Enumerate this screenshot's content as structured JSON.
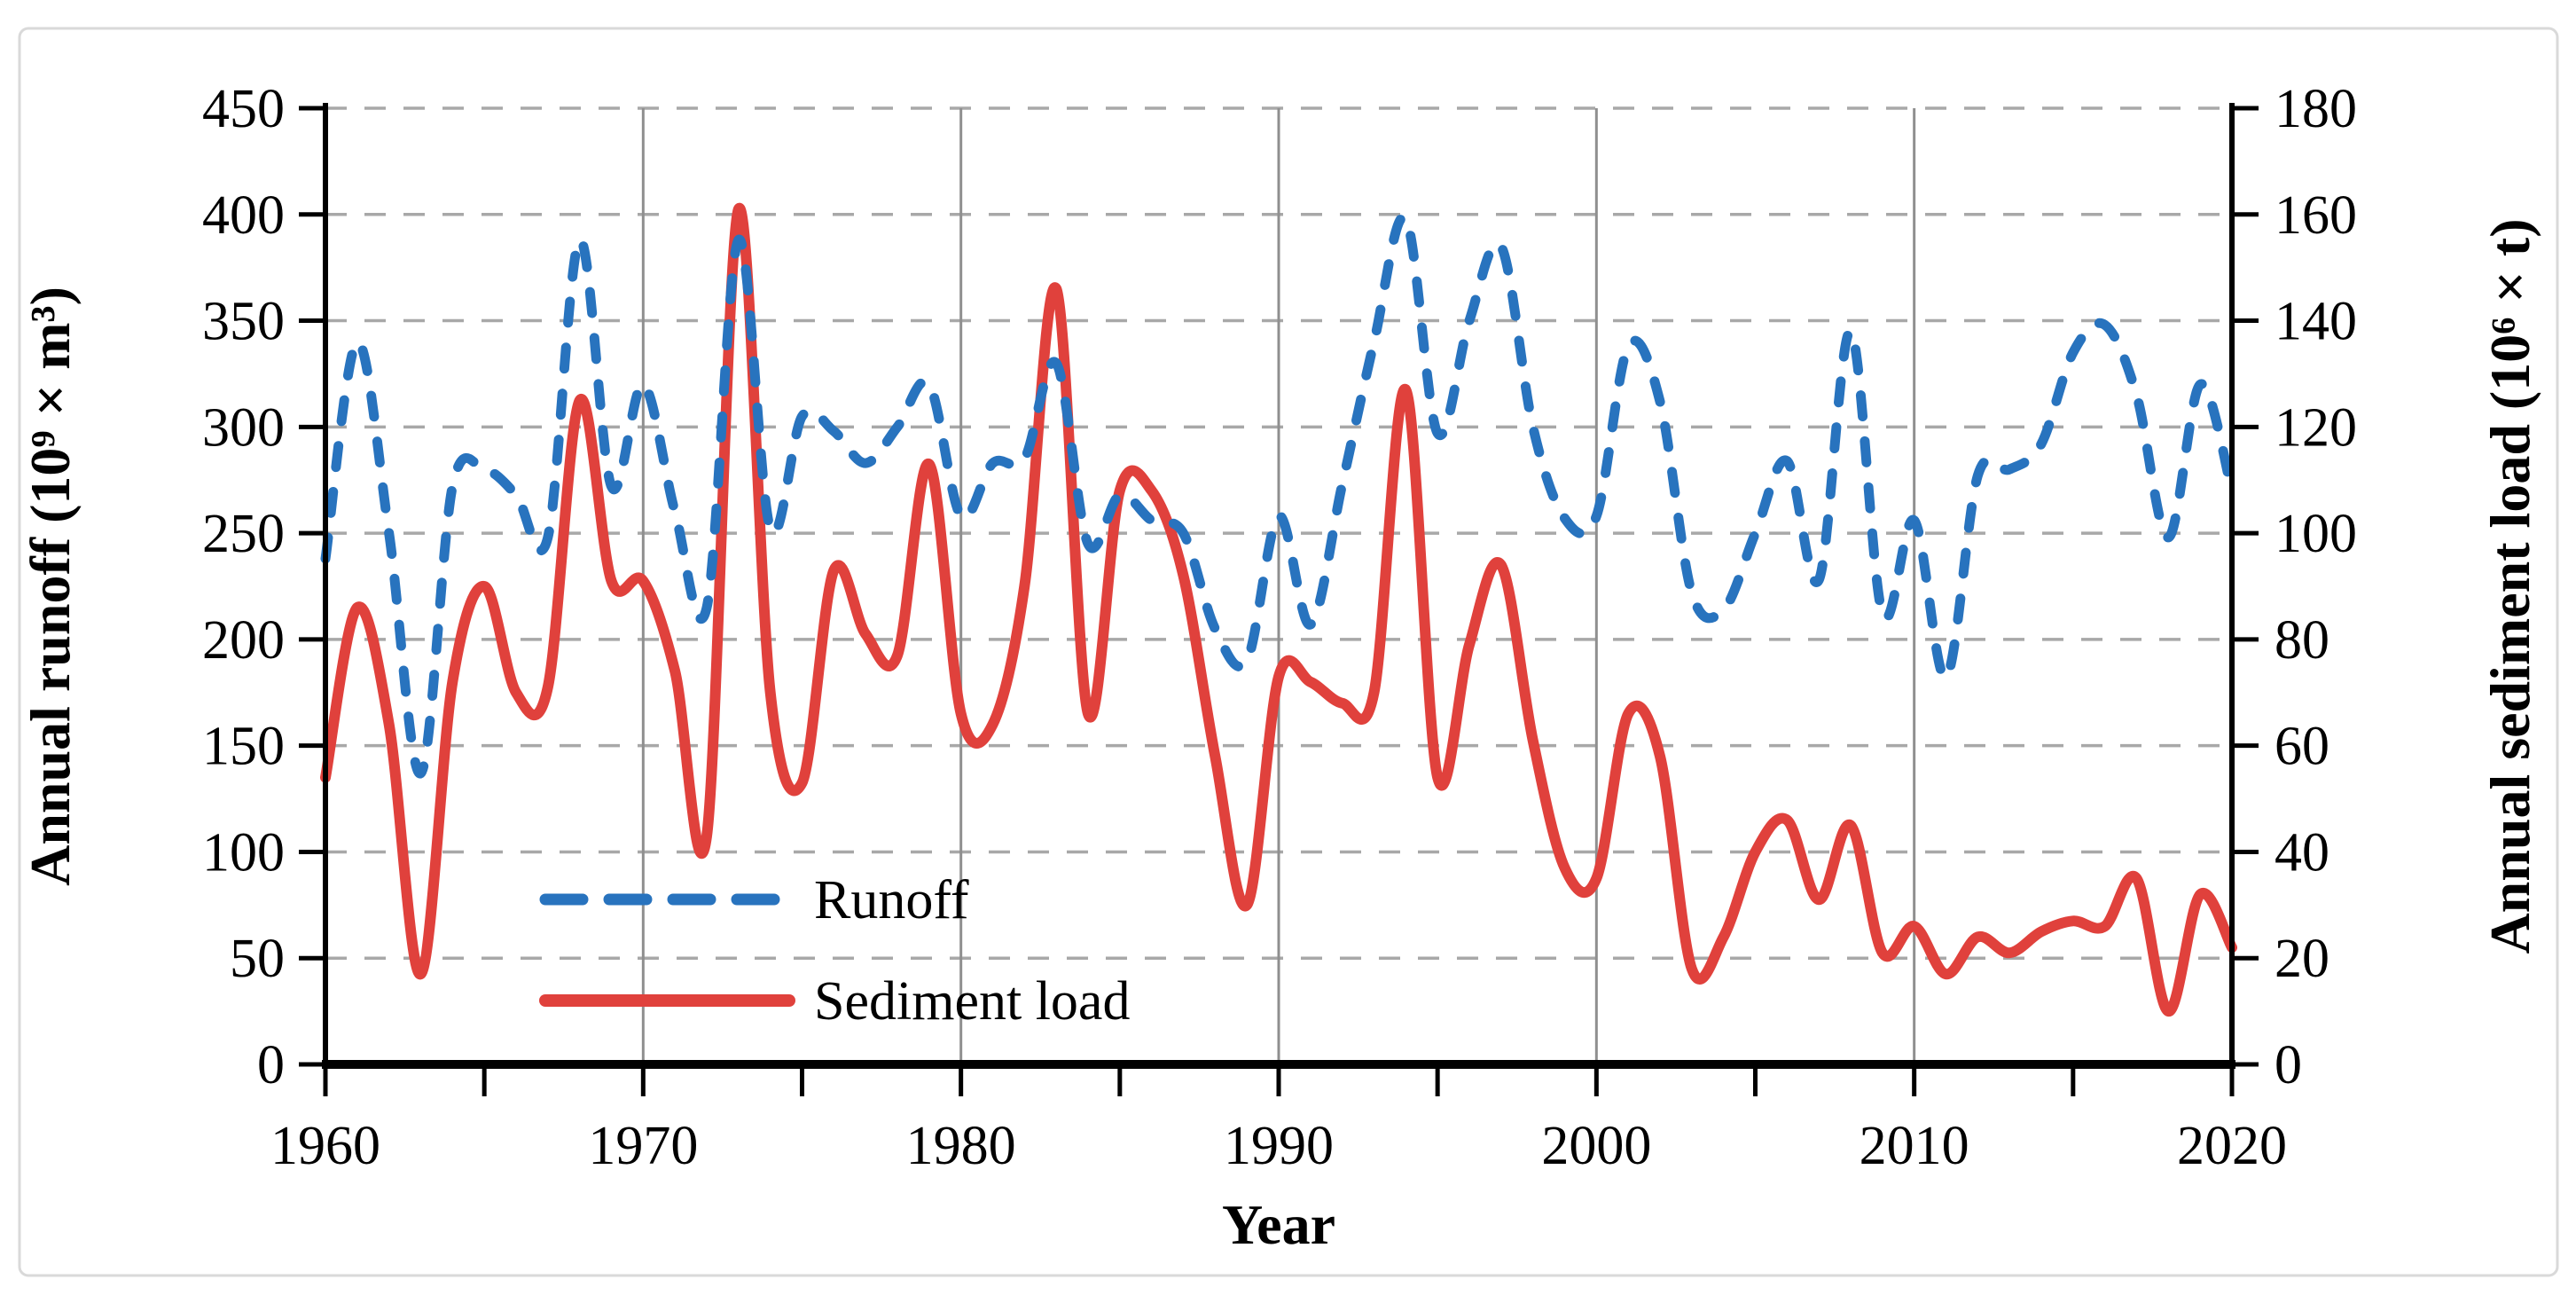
{
  "chart_data": {
    "type": "line",
    "title": "",
    "xlabel": "Year",
    "x_axis": {
      "range": [
        1960,
        2020
      ],
      "major_ticks": [
        1960,
        1970,
        1980,
        1990,
        2000,
        2010,
        2020
      ],
      "minor_tick_step_years": 5,
      "decade_gridlines": [
        1970,
        1980,
        1990,
        2000,
        2010
      ]
    },
    "y_left": {
      "title": "Annual runoff (10⁹ × m³)",
      "range": [
        0,
        450
      ],
      "tick_step": 50,
      "ticks": [
        0,
        50,
        100,
        150,
        200,
        250,
        300,
        350,
        400,
        450
      ]
    },
    "y_right": {
      "title": "Annual sediment load (10⁶ × t)",
      "range": [
        0,
        180
      ],
      "tick_step": 20,
      "ticks": [
        0,
        20,
        40,
        60,
        80,
        100,
        120,
        140,
        160,
        180
      ]
    },
    "x": [
      1960,
      1961,
      1962,
      1963,
      1964,
      1965,
      1966,
      1967,
      1968,
      1969,
      1970,
      1971,
      1972,
      1973,
      1974,
      1975,
      1976,
      1977,
      1978,
      1979,
      1980,
      1981,
      1982,
      1983,
      1984,
      1985,
      1986,
      1987,
      1988,
      1989,
      1990,
      1991,
      1992,
      1993,
      1994,
      1995,
      1996,
      1997,
      1998,
      1999,
      2000,
      2001,
      2002,
      2003,
      2004,
      2005,
      2006,
      2007,
      2008,
      2009,
      2010,
      2011,
      2012,
      2013,
      2014,
      2015,
      2016,
      2017,
      2018,
      2019,
      2020
    ],
    "series": [
      {
        "name": "Runoff",
        "axis": "left",
        "units": "10⁹ × m³",
        "color": "#2873BE",
        "style": "dashed",
        "values": [
          238,
          340,
          250,
          137,
          272,
          280,
          268,
          248,
          388,
          272,
          320,
          260,
          215,
          388,
          252,
          305,
          298,
          283,
          300,
          320,
          258,
          283,
          285,
          330,
          245,
          268,
          256,
          250,
          205,
          190,
          258,
          207,
          273,
          340,
          398,
          297,
          350,
          385,
          300,
          257,
          258,
          338,
          312,
          222,
          214,
          250,
          284,
          228,
          345,
          212,
          256,
          182,
          277,
          280,
          292,
          335,
          348,
          315,
          248,
          320,
          270
        ]
      },
      {
        "name": "Sediment load",
        "axis": "right",
        "units": "10⁶ × t",
        "color": "#E0413C",
        "style": "solid",
        "values": [
          54,
          86,
          64,
          17,
          72,
          90,
          70,
          71,
          125,
          91,
          91,
          74,
          43,
          161,
          70,
          53,
          93,
          81,
          77,
          113,
          66,
          64,
          90,
          146,
          66,
          108,
          108,
          92,
          58,
          30,
          73,
          72,
          68,
          70,
          127,
          54,
          79,
          94,
          61,
          37,
          35,
          66,
          58,
          18,
          24,
          40,
          46,
          31,
          45,
          21,
          26,
          17,
          24,
          21,
          25,
          27,
          26,
          35,
          10,
          32,
          22
        ]
      }
    ],
    "legend": {
      "position": "inside-bottom-left",
      "entries": [
        "Runoff",
        "Sediment load"
      ]
    },
    "grid": {
      "horizontal": "dashed",
      "horizontal_color": "#A8A8A8",
      "vertical": "solid-decades",
      "vertical_color": "#8F8F8F"
    },
    "axis_color": "#000000",
    "border_color": "#D9D9D9",
    "background": "#FFFFFF"
  }
}
